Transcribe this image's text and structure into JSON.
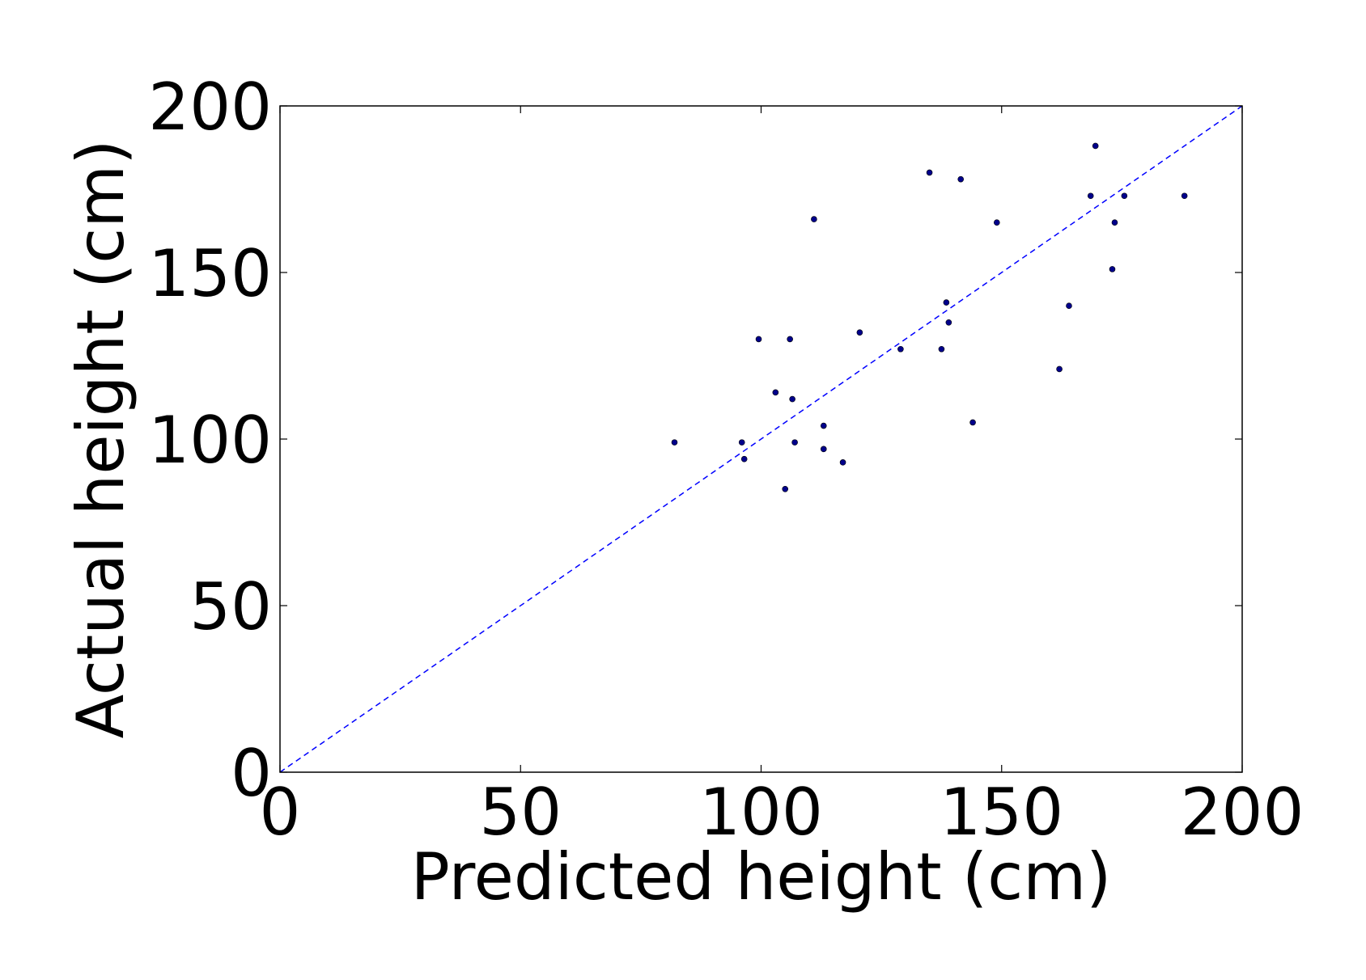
{
  "chart_data": {
    "type": "scatter",
    "title": "",
    "xlabel": "Predicted height (cm)",
    "ylabel": "Actual height (cm)",
    "xlim": [
      0,
      200
    ],
    "ylim": [
      0,
      200
    ],
    "xticks": [
      0,
      50,
      100,
      150,
      200
    ],
    "yticks": [
      0,
      50,
      100,
      150,
      200
    ],
    "grid": false,
    "point_color": "#00008b",
    "reference_line": {
      "from": [
        0,
        0
      ],
      "to": [
        200,
        200
      ],
      "style": "dashed",
      "color": "#0000ff"
    },
    "series": [
      {
        "points": [
          {
            "x": 82,
            "y": 99
          },
          {
            "x": 96,
            "y": 99
          },
          {
            "x": 96.5,
            "y": 94
          },
          {
            "x": 99.5,
            "y": 130
          },
          {
            "x": 103,
            "y": 114
          },
          {
            "x": 105,
            "y": 85
          },
          {
            "x": 106,
            "y": 130
          },
          {
            "x": 106.5,
            "y": 112
          },
          {
            "x": 107,
            "y": 99
          },
          {
            "x": 111,
            "y": 166
          },
          {
            "x": 113,
            "y": 104
          },
          {
            "x": 113,
            "y": 97
          },
          {
            "x": 117,
            "y": 93
          },
          {
            "x": 120.5,
            "y": 132
          },
          {
            "x": 129,
            "y": 127
          },
          {
            "x": 135,
            "y": 180
          },
          {
            "x": 137.5,
            "y": 127
          },
          {
            "x": 138.5,
            "y": 141
          },
          {
            "x": 139,
            "y": 135
          },
          {
            "x": 141.5,
            "y": 178
          },
          {
            "x": 144,
            "y": 105
          },
          {
            "x": 149,
            "y": 165
          },
          {
            "x": 162,
            "y": 121
          },
          {
            "x": 164,
            "y": 140
          },
          {
            "x": 168.5,
            "y": 173
          },
          {
            "x": 169.5,
            "y": 188
          },
          {
            "x": 173,
            "y": 151
          },
          {
            "x": 173.5,
            "y": 165
          },
          {
            "x": 175.5,
            "y": 173
          },
          {
            "x": 188,
            "y": 173
          }
        ]
      }
    ]
  }
}
